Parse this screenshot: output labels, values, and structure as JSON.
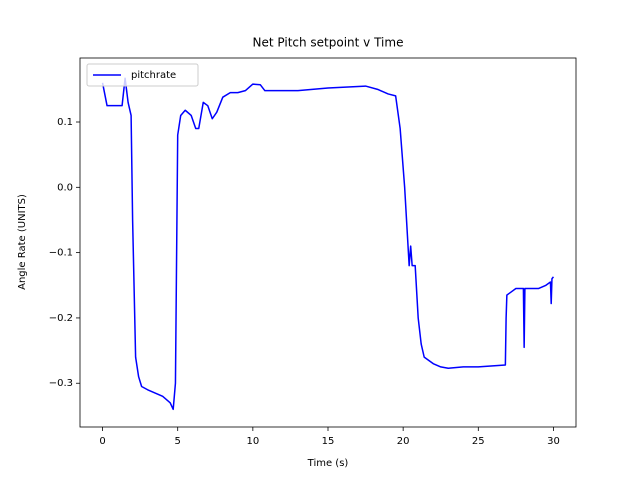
{
  "chart_data": {
    "type": "line",
    "title": "Net Pitch setpoint v Time",
    "x_label": "Time (s)",
    "y_label": "Angle Rate (UNITS)",
    "x": [
      0,
      0.3,
      1.3,
      1.5,
      1.7,
      1.9,
      2.0,
      2.2,
      2.4,
      2.6,
      3.0,
      3.5,
      4.0,
      4.5,
      4.7,
      4.85,
      5.0,
      5.2,
      5.5,
      5.9,
      6.2,
      6.4,
      6.7,
      7.0,
      7.3,
      7.6,
      8.0,
      8.5,
      9.0,
      9.5,
      10.0,
      10.5,
      10.8,
      11.5,
      13,
      15,
      17.5,
      18.3,
      19.0,
      19.5,
      19.8,
      20.1,
      20.3,
      20.4,
      20.5,
      20.6,
      20.8,
      21.0,
      21.2,
      21.4,
      22,
      22.5,
      23,
      24,
      25,
      26.8,
      26.85,
      26.9,
      27.2,
      27.5,
      28.0,
      28.05,
      28.1,
      29,
      29.5,
      29.8,
      29.85,
      29.9,
      30
    ],
    "series": [
      {
        "name": "pitchrate",
        "color": "#0000ff",
        "values": [
          0.16,
          0.125,
          0.125,
          0.167,
          0.13,
          0.11,
          -0.05,
          -0.26,
          -0.29,
          -0.305,
          -0.31,
          -0.315,
          -0.32,
          -0.33,
          -0.34,
          -0.3,
          0.08,
          0.11,
          0.118,
          0.11,
          0.09,
          0.09,
          0.13,
          0.125,
          0.105,
          0.115,
          0.138,
          0.145,
          0.145,
          0.148,
          0.158,
          0.157,
          0.148,
          0.148,
          0.148,
          0.152,
          0.155,
          0.15,
          0.143,
          0.14,
          0.09,
          0.0,
          -0.08,
          -0.12,
          -0.09,
          -0.12,
          -0.12,
          -0.2,
          -0.24,
          -0.26,
          -0.27,
          -0.275,
          -0.277,
          -0.275,
          -0.275,
          -0.272,
          -0.2,
          -0.165,
          -0.16,
          -0.155,
          -0.155,
          -0.245,
          -0.155,
          -0.155,
          -0.15,
          -0.145,
          -0.178,
          -0.14,
          -0.137
        ]
      }
    ],
    "xlim": [
      -1.5,
      31.5
    ],
    "ylim": [
      -0.367,
      0.198
    ],
    "xticks": [
      0,
      5,
      10,
      15,
      20,
      25,
      30
    ],
    "yticks": [
      {
        "value": -0.3,
        "label": "−0.3"
      },
      {
        "value": -0.2,
        "label": "−0.2"
      },
      {
        "value": -0.1,
        "label": "−0.1"
      },
      {
        "value": 0,
        "label": "0.0"
      },
      0.1
    ],
    "legend": "upper left"
  }
}
